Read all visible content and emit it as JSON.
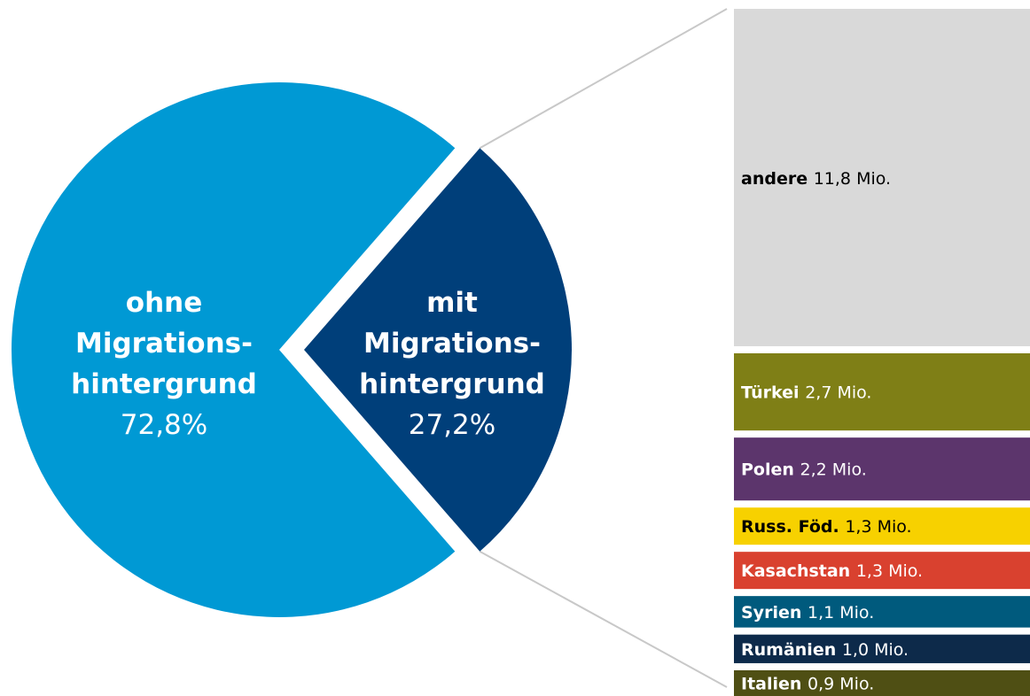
{
  "chart_data": {
    "type": "pie",
    "slices": [
      {
        "label_lines": [
          "ohne",
          "Migrations-",
          "hintergrund"
        ],
        "value_label": "72,8%",
        "value": 72.8,
        "color": "#0099d4"
      },
      {
        "label_lines": [
          "mit",
          "Migrations-",
          "hintergrund"
        ],
        "value_label": "27,2%",
        "value": 27.2,
        "color": "#003f7a"
      }
    ],
    "breakdown": {
      "type": "stacked-bar",
      "unit": "Mio.",
      "segments": [
        {
          "name": "andere",
          "value_label": "11,8 Mio.",
          "value": 11.8,
          "color": "#d9d9d9",
          "text_color": "#000000"
        },
        {
          "name": "Türkei",
          "value_label": "2,7 Mio.",
          "value": 2.7,
          "color": "#7f7f16",
          "text_color": "#ffffff"
        },
        {
          "name": "Polen",
          "value_label": "2,2 Mio.",
          "value": 2.2,
          "color": "#5c356c",
          "text_color": "#ffffff"
        },
        {
          "name": "Russ. Föd.",
          "value_label": "1,3 Mio.",
          "value": 1.3,
          "color": "#f7d100",
          "text_color": "#000000"
        },
        {
          "name": "Kasachstan",
          "value_label": "1,3 Mio.",
          "value": 1.3,
          "color": "#d9412f",
          "text_color": "#ffffff"
        },
        {
          "name": "Syrien",
          "value_label": "1,1 Mio.",
          "value": 1.1,
          "color": "#005a7d",
          "text_color": "#ffffff"
        },
        {
          "name": "Rumänien",
          "value_label": "1,0 Mio.",
          "value": 1.0,
          "color": "#0d2a4a",
          "text_color": "#ffffff"
        },
        {
          "name": "Italien",
          "value_label": "0,9 Mio.",
          "value": 0.9,
          "color": "#4f4f14",
          "text_color": "#ffffff"
        }
      ]
    },
    "connector_color": "#c8c8c8",
    "legend": "none",
    "grid": false
  }
}
